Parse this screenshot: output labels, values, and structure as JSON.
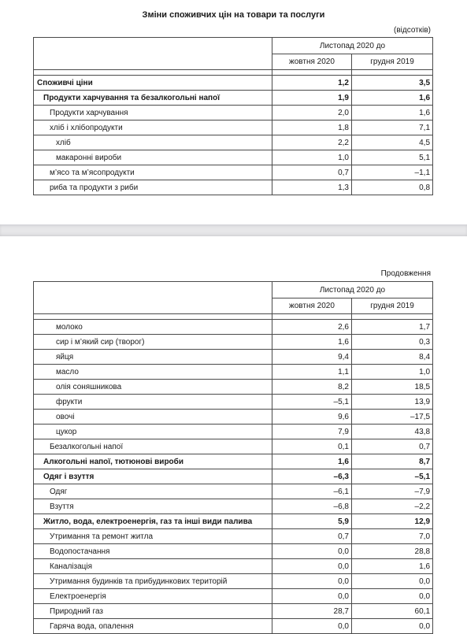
{
  "page1": {
    "title": "Зміни споживчих цін на товари та послуги",
    "unit": "(відсотків)",
    "header": {
      "group": "Листопад 2020 до",
      "col1": "жовтня 2020",
      "col2": "грудня 2019"
    },
    "rows": [
      {
        "label": "Споживчі ціни",
        "v1": "1,2",
        "v2": "3,5",
        "level": 0,
        "bold": true
      },
      {
        "label": "Продукти харчування та безалкогольні напої",
        "v1": "1,9",
        "v2": "1,6",
        "level": 1,
        "bold": true
      },
      {
        "label": "Продукти харчування",
        "v1": "2,0",
        "v2": "1,6",
        "level": 2,
        "bold": false
      },
      {
        "label": "хліб і хлібопродукти",
        "v1": "1,8",
        "v2": "7,1",
        "level": 2,
        "bold": false
      },
      {
        "label": "хліб",
        "v1": "2,2",
        "v2": "4,5",
        "level": 3,
        "bold": false
      },
      {
        "label": "макаронні вироби",
        "v1": "1,0",
        "v2": "5,1",
        "level": 3,
        "bold": false
      },
      {
        "label": "м’ясо та м’ясопродукти",
        "v1": "0,7",
        "v2": "–1,1",
        "level": 2,
        "bold": false
      },
      {
        "label": "риба та продукти з риби",
        "v1": "1,3",
        "v2": "0,8",
        "level": 2,
        "bold": false
      }
    ]
  },
  "page2": {
    "continuation": "Продовження",
    "header": {
      "group": "Листопад 2020 до",
      "col1": "жовтня 2020",
      "col2": "грудня 2019"
    },
    "rows": [
      {
        "label": "молоко",
        "v1": "2,6",
        "v2": "1,7",
        "level": 3,
        "bold": false
      },
      {
        "label": "сир і м’який сир (творог)",
        "v1": "1,6",
        "v2": "0,3",
        "level": 3,
        "bold": false
      },
      {
        "label": "яйця",
        "v1": "9,4",
        "v2": "8,4",
        "level": 3,
        "bold": false
      },
      {
        "label": "масло",
        "v1": "1,1",
        "v2": "1,0",
        "level": 3,
        "bold": false
      },
      {
        "label": "олія соняшникова",
        "v1": "8,2",
        "v2": "18,5",
        "level": 3,
        "bold": false
      },
      {
        "label": "фрукти",
        "v1": "–5,1",
        "v2": "13,9",
        "level": 3,
        "bold": false
      },
      {
        "label": "овочі",
        "v1": "9,6",
        "v2": "–17,5",
        "level": 3,
        "bold": false
      },
      {
        "label": "цукор",
        "v1": "7,9",
        "v2": "43,8",
        "level": 3,
        "bold": false
      },
      {
        "label": "Безалкогольні напої",
        "v1": "0,1",
        "v2": "0,7",
        "level": 2,
        "bold": false
      },
      {
        "label": "Алкогольні напої, тютюнові вироби",
        "v1": "1,6",
        "v2": "8,7",
        "level": 1,
        "bold": true
      },
      {
        "label": "Одяг і взуття",
        "v1": "–6,3",
        "v2": "–5,1",
        "level": 1,
        "bold": true
      },
      {
        "label": "Одяг",
        "v1": "–6,1",
        "v2": "–7,9",
        "level": 2,
        "bold": false
      },
      {
        "label": "Взуття",
        "v1": "–6,8",
        "v2": "–2,2",
        "level": 2,
        "bold": false
      },
      {
        "label": "Житло, вода, електроенергія, газ та інші види палива",
        "v1": "5,9",
        "v2": "12,9",
        "level": 1,
        "bold": true
      },
      {
        "label": "Утримання та ремонт житла",
        "v1": "0,7",
        "v2": "7,0",
        "level": 2,
        "bold": false
      },
      {
        "label": "Водопостачання",
        "v1": "0,0",
        "v2": "28,8",
        "level": 2,
        "bold": false
      },
      {
        "label": "Каналізація",
        "v1": "0,0",
        "v2": "1,6",
        "level": 2,
        "bold": false
      },
      {
        "label": "Утримання будинків та прибудинкових територій",
        "v1": "0,0",
        "v2": "0,0",
        "level": 2,
        "bold": false
      },
      {
        "label": "Електроенергія",
        "v1": "0,0",
        "v2": "0,0",
        "level": 2,
        "bold": false
      },
      {
        "label": "Природний газ",
        "v1": "28,7",
        "v2": "60,1",
        "level": 2,
        "bold": false
      },
      {
        "label": "Гаряча вода, опалення",
        "v1": "0,0",
        "v2": "0,0",
        "level": 2,
        "bold": false
      }
    ]
  }
}
